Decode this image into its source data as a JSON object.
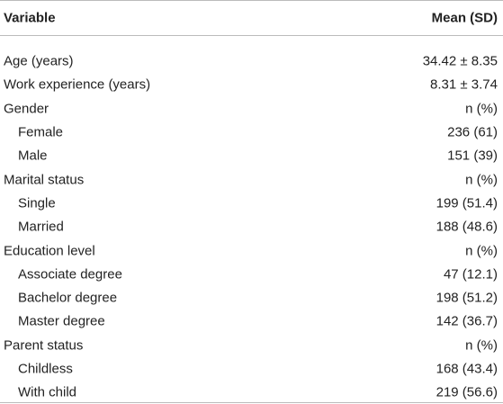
{
  "table": {
    "header": [
      "Variable",
      "Mean (SD)"
    ],
    "rows": [
      {
        "label": "Age (years)",
        "value": "34.42 ± 8.35"
      },
      {
        "label": "Work experience (years)",
        "value": "8.31 ± 3.74"
      },
      {
        "label": "Gender",
        "value": "n (%)",
        "items": [
          {
            "label": "Female",
            "value": "236 (61)"
          },
          {
            "label": "Male",
            "value": "151 (39)"
          }
        ]
      },
      {
        "label": "Marital status",
        "value": "n (%)",
        "items": [
          {
            "label": "Single",
            "value": "199 (51.4)"
          },
          {
            "label": "Married",
            "value": "188 (48.6)"
          }
        ]
      },
      {
        "label": "Education level",
        "value": "n (%)",
        "items": [
          {
            "label": "Associate degree",
            "value": "47 (12.1)"
          },
          {
            "label": "Bachelor degree",
            "value": "198 (51.2)"
          },
          {
            "label": "Master degree",
            "value": "142 (36.7)"
          }
        ]
      },
      {
        "label": "Parent status",
        "value": "n (%)",
        "items": [
          {
            "label": "Childless",
            "value": "168 (43.4)"
          },
          {
            "label": "With child",
            "value": "219 (56.6)"
          }
        ]
      }
    ]
  }
}
